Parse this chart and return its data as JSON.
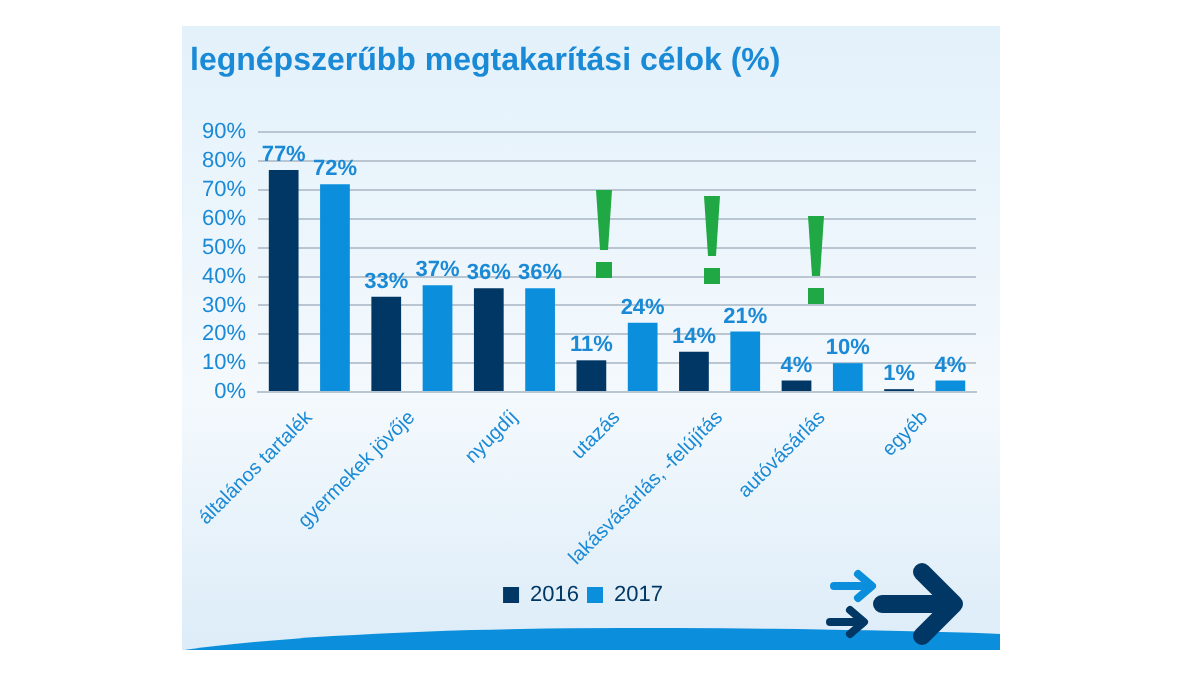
{
  "chart_data": {
    "type": "bar",
    "title": "legnépszerűbb megtakarítási célok (%)",
    "categories": [
      "általános tartalék",
      "gyermekek jövője",
      "nyugdíj",
      "utazás",
      "lakásvásárlás, -felújítás",
      "autóvásárlás",
      "egyéb"
    ],
    "series": [
      {
        "name": "2016",
        "color": "#003764",
        "values": [
          77,
          33,
          36,
          11,
          14,
          4,
          1
        ],
        "value_labels": [
          "77%",
          "33%",
          "36%",
          "11%",
          "14%",
          "4%",
          "1%"
        ]
      },
      {
        "name": "2017",
        "color": "#0b8fdc",
        "values": [
          72,
          37,
          36,
          24,
          21,
          10,
          4
        ],
        "value_labels": [
          "72%",
          "37%",
          "36%",
          "24%",
          "21%",
          "10%",
          "4%"
        ]
      }
    ],
    "ylim": [
      0,
      90
    ],
    "yticks": [
      {
        "value": 0,
        "label": "0%"
      },
      {
        "value": 10,
        "label": "10%"
      },
      {
        "value": 20,
        "label": "20%"
      },
      {
        "value": 30,
        "label": "30%"
      },
      {
        "value": 40,
        "label": "40%"
      },
      {
        "value": 50,
        "label": "50%"
      },
      {
        "value": 60,
        "label": "60%"
      },
      {
        "value": 70,
        "label": "70%"
      },
      {
        "value": 80,
        "label": "80%"
      },
      {
        "value": 90,
        "label": "90%"
      }
    ],
    "grid": "y",
    "legend": "bottom"
  }
}
